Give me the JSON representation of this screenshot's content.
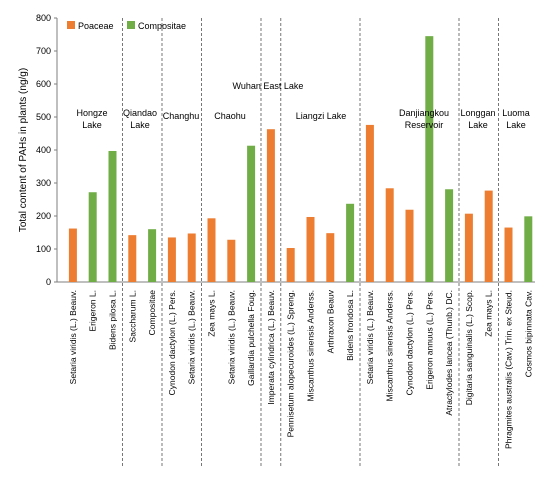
{
  "chart_data": {
    "type": "bar",
    "ylabel": "Total content of PAHs in plants (ng/g)",
    "ylim": [
      0,
      800
    ],
    "yticks": [
      0,
      100,
      200,
      300,
      400,
      500,
      600,
      700,
      800
    ],
    "grid": false,
    "legend": {
      "placement": "top-left",
      "entries": [
        {
          "name": "Poaceae",
          "color": "#ED7D31"
        },
        {
          "name": "Compositae",
          "color": "#70AD47"
        }
      ]
    },
    "categories": [
      "Setaria viridis (L.) Beauv.",
      "Erigeron L.",
      "Bidens pilosa L.",
      "Saccharum L.",
      "Compositae",
      "Cynodon dactylon (L.) Pers.",
      "Setaria viridis (L.) Beauv.",
      "Zea mays L.",
      "Setaria viridis (L.) Beauv.",
      "Gaillardia pulchella Foug.",
      "Imperata cylindrica (L.) Beauv.",
      "Pennisetum alopecuroides (L.) Spreng.",
      "Miscanthus sinensis Anderss.",
      "Arthraxon Beauv",
      "Bidens frondosa L.",
      "Setaria viridis (L.) Beauv.",
      "Miscanthus sinensis Anderss.",
      "Cynodon dactylon (L.) Pers.",
      "Erigeron annuus (L.) Pers.",
      "Atractylodes lancea (Thunb.) DC.",
      "Digitaria sanguinalis (L.) Scop.",
      "Zea mays L.",
      "Phragmites australis (Cav.) Trin. ex Steud.",
      "Cosmos bipinnata Cav."
    ],
    "family": [
      "Poaceae",
      "Compositae",
      "Compositae",
      "Poaceae",
      "Compositae",
      "Poaceae",
      "Poaceae",
      "Poaceae",
      "Poaceae",
      "Compositae",
      "Poaceae",
      "Poaceae",
      "Poaceae",
      "Poaceae",
      "Compositae",
      "Poaceae",
      "Poaceae",
      "Poaceae",
      "Compositae",
      "Compositae",
      "Poaceae",
      "Poaceae",
      "Poaceae",
      "Compositae"
    ],
    "values": [
      162,
      272,
      397,
      142,
      160,
      135,
      147,
      193,
      128,
      413,
      463,
      103,
      197,
      148,
      237,
      476,
      284,
      219,
      745,
      281,
      207,
      277,
      165,
      199
    ],
    "regions": [
      {
        "label": [
          "Hongze",
          "Lake"
        ],
        "start": 0,
        "end": 2
      },
      {
        "label": [
          "Qiandao",
          "Lake"
        ],
        "start": 3,
        "end": 4
      },
      {
        "label": [
          "Changhu"
        ],
        "start": 5,
        "end": 6
      },
      {
        "label": [
          "Chaohu"
        ],
        "start": 7,
        "end": 9
      },
      {
        "label": [
          "Wuhan East Lake"
        ],
        "start": 10,
        "end": 10
      },
      {
        "label": [
          "Liangzi Lake"
        ],
        "start": 11,
        "end": 14
      },
      {
        "label": [
          "Danjiangkou",
          "Reservoir"
        ],
        "start": 15,
        "end": 19
      },
      {
        "label": [
          "Longgan",
          "Lake"
        ],
        "start": 20,
        "end": 21
      },
      {
        "label": [
          "Luoma",
          "Lake"
        ],
        "start": 22,
        "end": 23
      }
    ]
  }
}
